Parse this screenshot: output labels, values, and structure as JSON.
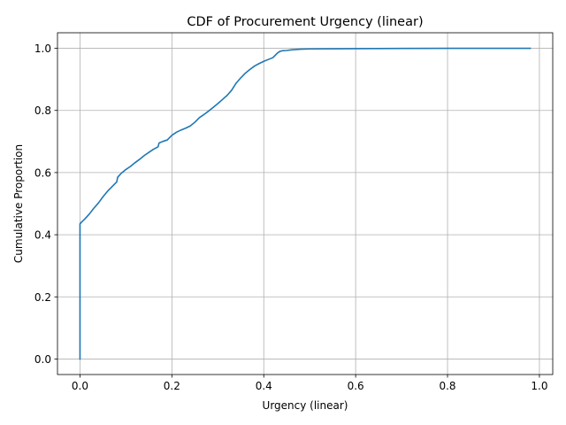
{
  "chart_data": {
    "type": "line",
    "title": "CDF of Procurement Urgency (linear)",
    "xlabel": "Urgency (linear)",
    "ylabel": "Cumulative Proportion",
    "xlim": [
      -0.049,
      1.029
    ],
    "ylim": [
      -0.05,
      1.05
    ],
    "xticks": [
      "0.0",
      "0.2",
      "0.4",
      "0.6",
      "0.8",
      "1.0"
    ],
    "yticks": [
      "0.0",
      "0.2",
      "0.4",
      "0.6",
      "0.8",
      "1.0"
    ],
    "grid": true,
    "series": [
      {
        "color": "#1f77b4",
        "x": [
          0.0,
          0.0,
          0.003,
          0.01,
          0.02,
          0.03,
          0.04,
          0.05,
          0.06,
          0.07,
          0.08,
          0.082,
          0.085,
          0.09,
          0.1,
          0.11,
          0.12,
          0.13,
          0.14,
          0.15,
          0.16,
          0.17,
          0.172,
          0.175,
          0.18,
          0.19,
          0.2,
          0.21,
          0.22,
          0.23,
          0.24,
          0.25,
          0.26,
          0.27,
          0.28,
          0.29,
          0.3,
          0.31,
          0.32,
          0.33,
          0.34,
          0.35,
          0.36,
          0.37,
          0.38,
          0.39,
          0.4,
          0.41,
          0.42,
          0.43,
          0.435,
          0.44,
          0.45,
          0.46,
          0.47,
          0.48,
          0.5,
          0.6,
          0.7,
          0.8,
          0.9,
          0.98
        ],
        "y": [
          0.0,
          0.435,
          0.44,
          0.45,
          0.466,
          0.485,
          0.502,
          0.522,
          0.54,
          0.555,
          0.57,
          0.585,
          0.59,
          0.598,
          0.61,
          0.62,
          0.632,
          0.643,
          0.655,
          0.665,
          0.675,
          0.683,
          0.695,
          0.697,
          0.7,
          0.705,
          0.72,
          0.73,
          0.737,
          0.743,
          0.75,
          0.762,
          0.777,
          0.787,
          0.798,
          0.81,
          0.822,
          0.835,
          0.848,
          0.865,
          0.888,
          0.905,
          0.92,
          0.932,
          0.943,
          0.951,
          0.958,
          0.964,
          0.97,
          0.985,
          0.99,
          0.992,
          0.993,
          0.995,
          0.996,
          0.997,
          0.998,
          0.999,
          0.9995,
          1.0,
          1.0,
          1.0
        ]
      }
    ]
  }
}
